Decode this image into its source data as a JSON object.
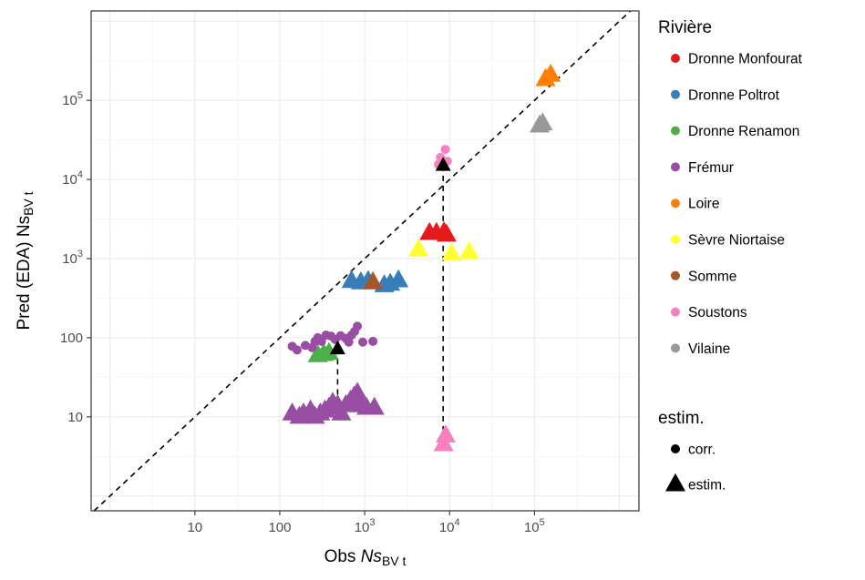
{
  "chart_data": {
    "type": "scatter",
    "x_axis": {
      "label": "Obs",
      "label_symbol": "Ns",
      "label_subscript": "BV t",
      "scale": "log10",
      "range": [
        0.6,
        1700000
      ],
      "ticks": [
        {
          "value": 10,
          "text": "10"
        },
        {
          "value": 100,
          "text": "100"
        },
        {
          "value": 1000,
          "base": "10",
          "exp": "3"
        },
        {
          "value": 10000,
          "base": "10",
          "exp": "4"
        },
        {
          "value": 100000,
          "base": "10",
          "exp": "5"
        }
      ]
    },
    "y_axis": {
      "label": "Pred (EDA)",
      "label_symbol": "Ns",
      "label_subscript": "BV t",
      "scale": "log10",
      "range": [
        0.65,
        1350000
      ],
      "ticks": [
        {
          "value": 10,
          "text": "10"
        },
        {
          "value": 100,
          "text": "100"
        },
        {
          "value": 1000,
          "base": "10",
          "exp": "3"
        },
        {
          "value": 10000,
          "base": "10",
          "exp": "4"
        },
        {
          "value": 100000,
          "base": "10",
          "exp": "5"
        }
      ]
    },
    "grid": true,
    "identity_line": true,
    "legend_position": "right",
    "legend_colour": {
      "title": "Rivière",
      "items": [
        {
          "name": "Dronne Monfourat",
          "color": "#E41A1C"
        },
        {
          "name": "Dronne Poltrot",
          "color": "#377EB8"
        },
        {
          "name": "Dronne Renamon",
          "color": "#4DAF4A"
        },
        {
          "name": "Frémur",
          "color": "#984EA3"
        },
        {
          "name": "Loire",
          "color": "#FF7F00"
        },
        {
          "name": "Sèvre Niortaise",
          "color": "#FFFF33"
        },
        {
          "name": "Somme",
          "color": "#A65628"
        },
        {
          "name": "Soustons",
          "color": "#F781BF"
        },
        {
          "name": "Vilaine",
          "color": "#999999"
        }
      ]
    },
    "legend_shape": {
      "title": "estim.",
      "items": [
        {
          "name": "corr.",
          "shape": "circle"
        },
        {
          "name": "estim.",
          "shape": "triangle"
        }
      ]
    },
    "series": [
      {
        "river": "Dronne Monfourat",
        "shape": "triangle",
        "points": [
          [
            5800,
            2100
          ],
          [
            7000,
            2100
          ],
          [
            8600,
            2150
          ],
          [
            9200,
            2000
          ]
        ]
      },
      {
        "river": "Dronne Poltrot",
        "shape": "triangle",
        "points": [
          [
            700,
            520
          ],
          [
            900,
            500
          ],
          [
            1100,
            520
          ],
          [
            1700,
            460
          ],
          [
            2000,
            480
          ],
          [
            2500,
            530
          ]
        ]
      },
      {
        "river": "Dronne Renamon",
        "shape": "triangle",
        "points": [
          [
            280,
            60
          ],
          [
            330,
            62
          ],
          [
            380,
            64
          ]
        ]
      },
      {
        "river": "Frémur",
        "shape": "triangle",
        "points": [
          [
            140,
            11
          ],
          [
            170,
            10
          ],
          [
            190,
            11
          ],
          [
            230,
            12
          ],
          [
            260,
            10
          ],
          [
            300,
            11
          ],
          [
            340,
            12
          ],
          [
            380,
            13
          ],
          [
            420,
            15
          ],
          [
            480,
            14
          ],
          [
            530,
            11
          ],
          [
            600,
            14
          ],
          [
            680,
            16
          ],
          [
            750,
            18
          ],
          [
            820,
            20
          ],
          [
            900,
            14
          ],
          [
            1050,
            13
          ],
          [
            1300,
            13
          ]
        ]
      },
      {
        "river": "Frémur",
        "shape": "circle",
        "points": [
          [
            140,
            78
          ],
          [
            160,
            70
          ],
          [
            200,
            80
          ],
          [
            240,
            75
          ],
          [
            260,
            90
          ],
          [
            280,
            100
          ],
          [
            310,
            90
          ],
          [
            350,
            108
          ],
          [
            400,
            105
          ],
          [
            450,
            95
          ],
          [
            520,
            106
          ],
          [
            600,
            98
          ],
          [
            650,
            88
          ],
          [
            700,
            108
          ],
          [
            760,
            120
          ],
          [
            820,
            140
          ],
          [
            950,
            88
          ],
          [
            1250,
            90
          ]
        ]
      },
      {
        "river": "Loire",
        "shape": "triangle",
        "points": [
          [
            135000,
            185000
          ],
          [
            155000,
            210000
          ]
        ]
      },
      {
        "river": "Sèvre Niortaise",
        "shape": "triangle",
        "points": [
          [
            4300,
            1300
          ],
          [
            10500,
            1150
          ],
          [
            17000,
            1200
          ]
        ]
      },
      {
        "river": "Somme",
        "shape": "triangle",
        "points": [
          [
            1250,
            500
          ]
        ]
      },
      {
        "river": "Soustons",
        "shape": "triangle",
        "points": [
          [
            8500,
            4.5
          ],
          [
            9000,
            5.8
          ]
        ]
      },
      {
        "river": "Soustons",
        "shape": "circle",
        "points": [
          [
            7800,
            19000
          ],
          [
            8200,
            16500
          ],
          [
            8900,
            24000
          ],
          [
            9400,
            17000
          ],
          [
            7400,
            15500
          ]
        ]
      },
      {
        "river": "Vilaine",
        "shape": "triangle",
        "points": [
          [
            115000,
            48000
          ],
          [
            125000,
            51000
          ]
        ]
      }
    ],
    "means": [
      {
        "shape": "triangle",
        "color": "#000000",
        "point": [
          480,
          72
        ]
      },
      {
        "shape": "triangle",
        "color": "#000000",
        "point": [
          8400,
          15000
        ]
      }
    ],
    "connectors": [
      {
        "style": "dashed",
        "from": [
          480,
          72
        ],
        "to": [
          480,
          12
        ]
      },
      {
        "style": "dashed",
        "from": [
          8400,
          15000
        ],
        "to": [
          8400,
          4.5
        ]
      }
    ]
  }
}
